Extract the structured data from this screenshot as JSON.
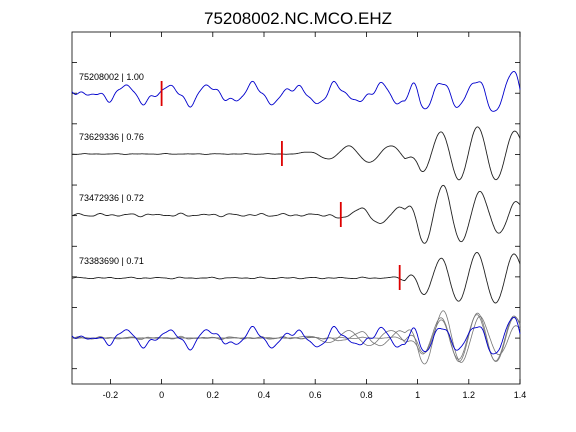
{
  "chart_data": {
    "type": "line",
    "title": "75208002.NC.MCO.EHZ",
    "xlabel": "",
    "ylabel": "",
    "xlim": [
      -0.35,
      1.4
    ],
    "xticks": [
      "-0.2",
      "0",
      "0.2",
      "0.4",
      "0.6",
      "0.8",
      "1",
      "1.2",
      "1.4"
    ],
    "xtick_values": [
      -0.2,
      0,
      0.2,
      0.4,
      0.6,
      0.8,
      1.0,
      1.2,
      1.4
    ],
    "grid": false,
    "legend": "none",
    "colors": {
      "primary": "#0000cc",
      "secondary": "#222222",
      "pick": "#dd0000",
      "overlay_gray": "#777777"
    },
    "series": [
      {
        "label": "75208002 | 1.00",
        "color": "#0000cc",
        "pick_time": 0.0,
        "noise_amp": 0.17,
        "onset": -0.35
      },
      {
        "label": "73629336 | 0.76",
        "color": "#222222",
        "pick_time": 0.47,
        "noise_amp": 0.015,
        "onset": 0.5
      },
      {
        "label": "73472936 | 0.72",
        "color": "#222222",
        "pick_time": 0.7,
        "noise_amp": 0.06,
        "onset": 0.6
      },
      {
        "label": "73383690 | 0.71",
        "color": "#222222",
        "pick_time": 0.93,
        "noise_amp": 0.03,
        "onset": 0.88
      }
    ],
    "overlay": {
      "description_visible": false
    }
  }
}
